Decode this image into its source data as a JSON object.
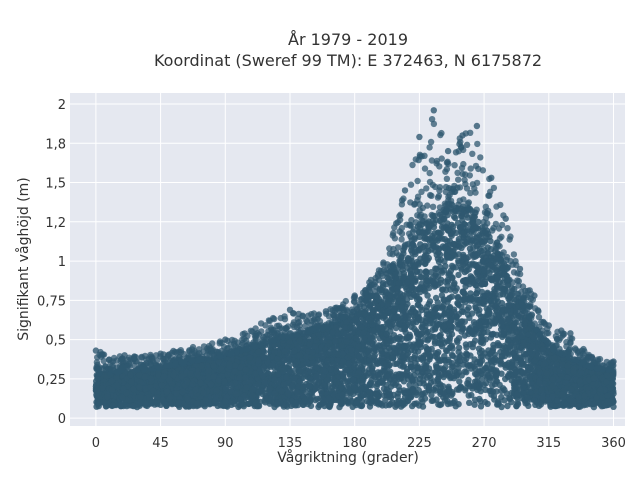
{
  "chart_data": {
    "type": "scatter",
    "title_lines": [
      "År 1979 - 2019",
      "Koordinat (Sweref 99 TM): E 372463, N 6175872"
    ],
    "xlabel": "Vågriktning (grader)",
    "ylabel": "Signifikant våghöjd (m)",
    "xlim": [
      -18,
      368
    ],
    "ylim": [
      -0.05,
      2.07
    ],
    "xticks": [
      0,
      45,
      90,
      135,
      180,
      225,
      270,
      315,
      360
    ],
    "xtick_labels": [
      "0",
      "45",
      "90",
      "135",
      "180",
      "225",
      "270",
      "315",
      "360"
    ],
    "yticks": [
      0,
      0.25,
      0.5,
      0.75,
      1,
      1.25,
      1.5,
      1.75,
      2
    ],
    "ytick_labels": [
      "0",
      "0,25",
      "0,5",
      "0,75",
      "1",
      "1,2",
      "1,5",
      "1,8",
      "2"
    ],
    "grid": true,
    "marker_color": "#2f5870",
    "plot_bg": "#e5e8f0",
    "envelope": {
      "direction": [
        0,
        20,
        45,
        90,
        135,
        160,
        180,
        200,
        215,
        225,
        235,
        245,
        255,
        265,
        275,
        285,
        295,
        305,
        315,
        330,
        345,
        360
      ],
      "max_height": [
        0.43,
        0.4,
        0.41,
        0.5,
        0.69,
        0.68,
        0.78,
        0.99,
        1.45,
        1.79,
        1.96,
        1.7,
        1.8,
        1.86,
        1.53,
        1.27,
        0.95,
        0.78,
        0.59,
        0.54,
        0.39,
        0.36
      ],
      "dense_max_height": [
        0.28,
        0.3,
        0.32,
        0.4,
        0.52,
        0.58,
        0.68,
        0.85,
        1.1,
        1.25,
        1.3,
        1.32,
        1.35,
        1.3,
        1.15,
        0.95,
        0.75,
        0.58,
        0.45,
        0.38,
        0.32,
        0.3
      ],
      "min_height": 0.05
    }
  }
}
